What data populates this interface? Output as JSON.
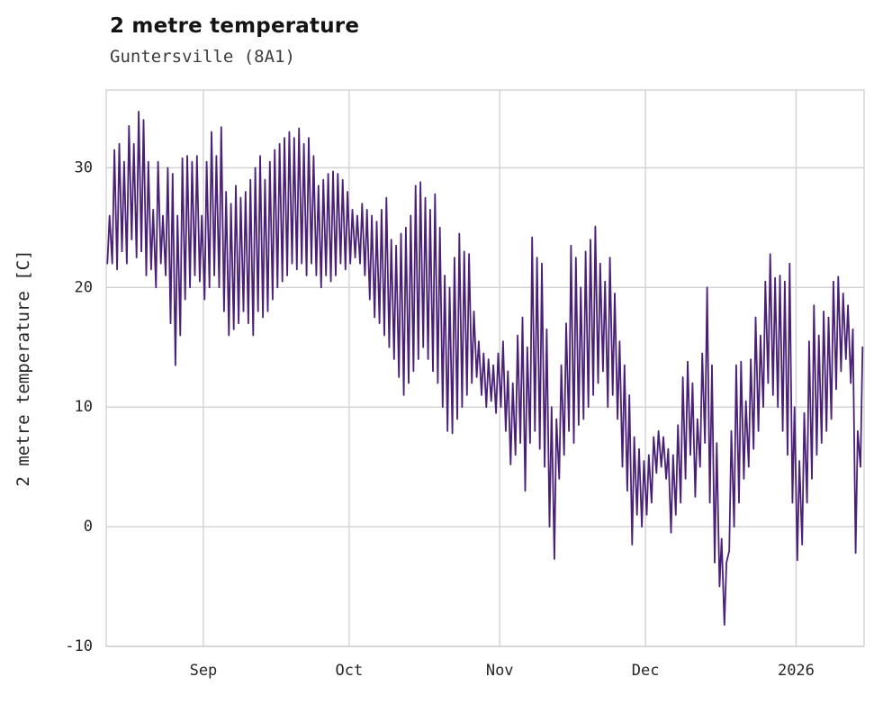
{
  "chart_data": {
    "type": "line",
    "title": "2 metre temperature",
    "subtitle": "Guntersville (8A1)",
    "ylabel": "2 metre temperature [C]",
    "xlabel": "",
    "ylim": [
      -10,
      36.5
    ],
    "yticks": [
      -10,
      0,
      10,
      20,
      30
    ],
    "xticks": [
      {
        "day": 20,
        "label": "Sep"
      },
      {
        "day": 50,
        "label": "Oct"
      },
      {
        "day": 81,
        "label": "Nov"
      },
      {
        "day": 111,
        "label": "Dec"
      },
      {
        "day": 142,
        "label": "2026"
      }
    ],
    "x_range_days": [
      0,
      156
    ],
    "x_start_date": "Aug 12",
    "grid": true,
    "legend": "none",
    "line_color": "#4a2077",
    "grid_color": "#d2d2d2",
    "series": [
      {
        "name": "2 metre temperature [C]",
        "sampling": "daily [min,max] pairs, diurnal cycle, day 0 = Aug 12",
        "daily_minmax": [
          [
            22,
            26
          ],
          [
            22,
            31.5
          ],
          [
            21.5,
            32
          ],
          [
            23,
            30.5
          ],
          [
            22,
            33.5
          ],
          [
            24,
            32
          ],
          [
            22.5,
            34.7
          ],
          [
            23,
            34
          ],
          [
            21,
            30.5
          ],
          [
            21.5,
            26.5
          ],
          [
            20,
            30.5
          ],
          [
            22,
            26
          ],
          [
            21,
            30
          ],
          [
            17,
            29.5
          ],
          [
            13.5,
            26
          ],
          [
            16,
            30.8
          ],
          [
            19,
            31
          ],
          [
            20,
            30.5
          ],
          [
            21,
            31
          ],
          [
            20.5,
            26
          ],
          [
            19,
            30.5
          ],
          [
            20,
            33
          ],
          [
            21,
            31
          ],
          [
            20,
            33.4
          ],
          [
            18,
            28
          ],
          [
            16,
            27
          ],
          [
            16.5,
            28.5
          ],
          [
            17,
            27.5
          ],
          [
            18,
            28
          ],
          [
            17,
            29
          ],
          [
            16,
            30
          ],
          [
            18,
            31
          ],
          [
            17.5,
            29
          ],
          [
            18,
            30.5
          ],
          [
            19,
            31.5
          ],
          [
            20,
            32
          ],
          [
            20.5,
            32.5
          ],
          [
            21,
            33
          ],
          [
            22,
            32.5
          ],
          [
            21.5,
            33.3
          ],
          [
            22,
            32
          ],
          [
            21,
            32.5
          ],
          [
            22,
            31
          ],
          [
            21,
            28.5
          ],
          [
            20,
            29
          ],
          [
            21,
            29.5
          ],
          [
            20.5,
            29.7
          ],
          [
            21,
            29.5
          ],
          [
            22,
            29
          ],
          [
            21.5,
            28
          ],
          [
            22,
            26.5
          ],
          [
            22.5,
            26
          ],
          [
            22,
            27
          ],
          [
            21,
            26.5
          ],
          [
            19,
            26
          ],
          [
            17.5,
            25.5
          ],
          [
            17,
            26.5
          ],
          [
            16,
            27.5
          ],
          [
            15,
            24
          ],
          [
            14,
            23.5
          ],
          [
            12.5,
            24.5
          ],
          [
            11,
            25
          ],
          [
            12,
            26
          ],
          [
            13,
            28.5
          ],
          [
            14,
            28.8
          ],
          [
            15,
            27.5
          ],
          [
            14,
            26.5
          ],
          [
            13,
            27.8
          ],
          [
            12,
            25
          ],
          [
            10,
            21
          ],
          [
            8,
            20
          ],
          [
            7.8,
            22.5
          ],
          [
            9,
            24.5
          ],
          [
            10,
            23
          ],
          [
            11,
            22.8
          ],
          [
            12,
            18
          ],
          [
            12.5,
            15.5
          ],
          [
            11,
            14.5
          ],
          [
            10,
            14
          ],
          [
            10.5,
            13.5
          ],
          [
            9.5,
            14.5
          ],
          [
            10,
            15.5
          ],
          [
            8,
            13
          ],
          [
            5.2,
            12
          ],
          [
            6,
            16
          ],
          [
            7,
            17.5
          ],
          [
            3,
            15
          ],
          [
            7,
            24.2
          ],
          [
            8,
            22.5
          ],
          [
            6.5,
            22
          ],
          [
            5,
            16.5
          ],
          [
            0,
            10
          ],
          [
            -2.7,
            9
          ],
          [
            4,
            13.5
          ],
          [
            6,
            17
          ],
          [
            8,
            23.5
          ],
          [
            7,
            22.5
          ],
          [
            8.5,
            20
          ],
          [
            9,
            23
          ],
          [
            10,
            24
          ],
          [
            11,
            25.1
          ],
          [
            12,
            22
          ],
          [
            13,
            20.5
          ],
          [
            10,
            22.5
          ],
          [
            11,
            19.5
          ],
          [
            9,
            15.5
          ],
          [
            5,
            13.5
          ],
          [
            3,
            11
          ],
          [
            -1.5,
            7.5
          ],
          [
            1,
            6.5
          ],
          [
            0,
            5.5
          ],
          [
            1,
            6
          ],
          [
            2,
            7.5
          ],
          [
            4.5,
            8
          ],
          [
            5,
            7.5
          ],
          [
            4,
            6.5
          ],
          [
            -0.5,
            6
          ],
          [
            1,
            8.5
          ],
          [
            2,
            12.5
          ],
          [
            4,
            13.8
          ],
          [
            6,
            12
          ],
          [
            2.5,
            9
          ],
          [
            5,
            14.5
          ],
          [
            7,
            20
          ],
          [
            2,
            13.5
          ],
          [
            -3,
            7
          ],
          [
            -5,
            -1
          ],
          [
            -8.2,
            -3
          ],
          [
            -2,
            8
          ],
          [
            0,
            13.5
          ],
          [
            2,
            13.8
          ],
          [
            4,
            10.5
          ],
          [
            5,
            14
          ],
          [
            6.5,
            17.5
          ],
          [
            8,
            16
          ],
          [
            10,
            20.5
          ],
          [
            12,
            22.8
          ],
          [
            11,
            20.8
          ],
          [
            10,
            21
          ],
          [
            8,
            20.5
          ],
          [
            6,
            22
          ],
          [
            2,
            10
          ],
          [
            -2.8,
            5.5
          ],
          [
            -1.5,
            9.5
          ],
          [
            2,
            15.5
          ],
          [
            4,
            18.5
          ],
          [
            6,
            16
          ],
          [
            7,
            18
          ],
          [
            8,
            17.5
          ],
          [
            9,
            20.5
          ],
          [
            11.5,
            20.9
          ],
          [
            13,
            19.5
          ],
          [
            14,
            18.5
          ],
          [
            12,
            16.5
          ],
          [
            -2.2,
            8
          ],
          [
            5,
            15
          ]
        ]
      }
    ]
  }
}
